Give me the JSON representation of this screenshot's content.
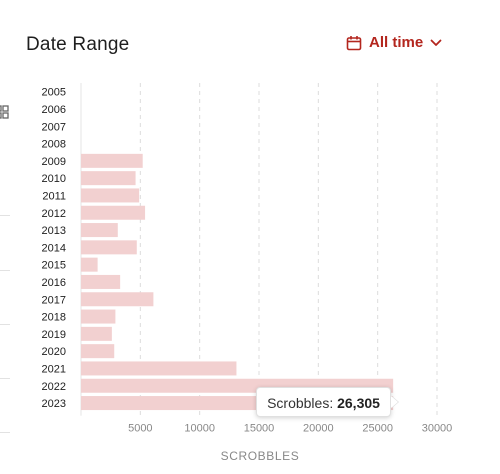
{
  "header": {
    "title": "Date Range",
    "range_label": "All time",
    "range_icon": "calendar-icon",
    "accent_color": "#b3261e"
  },
  "tooltip": {
    "label": "Scrobbles:",
    "value": "26,305"
  },
  "chart_data": {
    "type": "bar",
    "orientation": "horizontal",
    "categories": [
      "2005",
      "2006",
      "2007",
      "2008",
      "2009",
      "2010",
      "2011",
      "2012",
      "2013",
      "2014",
      "2015",
      "2016",
      "2017",
      "2018",
      "2019",
      "2020",
      "2021",
      "2022",
      "2023"
    ],
    "values": [
      0,
      0,
      0,
      0,
      5200,
      4600,
      4900,
      5400,
      3100,
      4700,
      1400,
      3300,
      6100,
      2900,
      2600,
      2800,
      13100,
      26305,
      26305
    ],
    "xlabel": "SCROBBLES",
    "ylabel": "",
    "xlim": [
      0,
      30000
    ],
    "xticks": [
      5000,
      10000,
      15000,
      20000,
      25000,
      30000
    ],
    "grid": "vertical dashed",
    "bar_color": "#f2d0d0",
    "grid_color": "#dcdcdc"
  }
}
